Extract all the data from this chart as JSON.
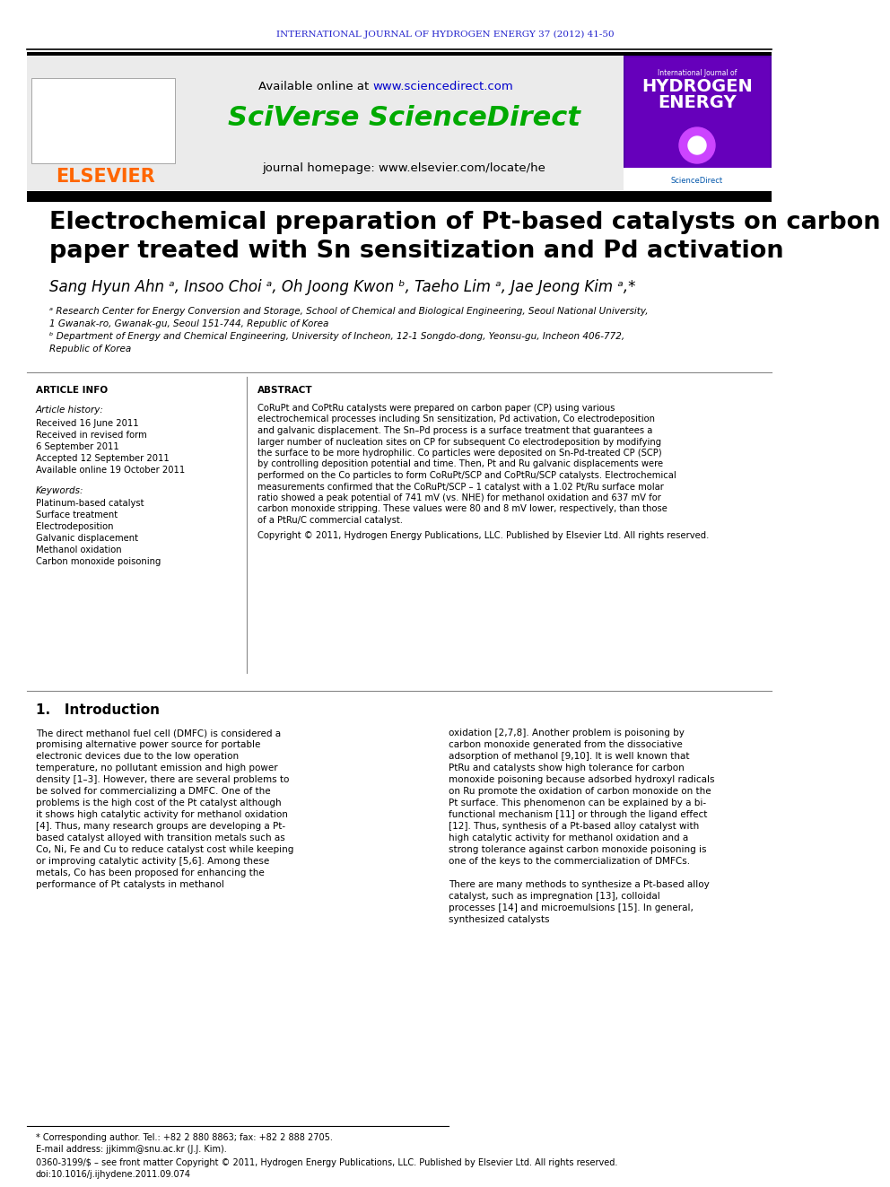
{
  "journal_header": "INTERNATIONAL JOURNAL OF HYDROGEN ENERGY 37 (2012) 41-50",
  "journal_header_color": "#2222cc",
  "available_online": "Available online at ",
  "sciencedirect_url": "www.sciencedirect.com",
  "sciencedirect_url_color": "#0000cc",
  "sciverse_text": "SciVerse ScienceDirect",
  "sciverse_color": "#00aa00",
  "journal_homepage": "journal homepage: www.elsevier.com/locate/he",
  "elsevier_color": "#ff6600",
  "title_line1": "Electrochemical preparation of Pt-based catalysts on carbon",
  "title_line2": "paper treated with Sn sensitization and Pd activation",
  "title_fontsize": 20,
  "authors": "Sang Hyun Ahn ᵃ, Insoo Choi ᵃ, Oh Joong Kwon ᵇ, Taeho Lim ᵃ, Jae Jeong Kim ᵃ,*",
  "affiliation_a": "ᵃ Research Center for Energy Conversion and Storage, School of Chemical and Biological Engineering, Seoul National University,",
  "affiliation_a2": "1 Gwanak-ro, Gwanak-gu, Seoul 151-744, Republic of Korea",
  "affiliation_b": "ᵇ Department of Energy and Chemical Engineering, University of Incheon, 12-1 Songdo-dong, Yeonsu-gu, Incheon 406-772,",
  "affiliation_b2": "Republic of Korea",
  "article_info_title": "ARTICLE INFO",
  "article_history_title": "Article history:",
  "received_1": "Received 16 June 2011",
  "received_revised": "Received in revised form",
  "received_revised_date": "6 September 2011",
  "accepted": "Accepted 12 September 2011",
  "available_online_date": "Available online 19 October 2011",
  "keywords_title": "Keywords:",
  "keywords": [
    "Platinum-based catalyst",
    "Surface treatment",
    "Electrodeposition",
    "Galvanic displacement",
    "Methanol oxidation",
    "Carbon monoxide poisoning"
  ],
  "abstract_title": "ABSTRACT",
  "abstract_text": "CoRuPt and CoPtRu catalysts were prepared on carbon paper (CP) using various electrochemical processes including Sn sensitization, Pd activation, Co electrodeposition and galvanic displacement. The Sn–Pd process is a surface treatment that guarantees a larger number of nucleation sites on CP for subsequent Co electrodeposition by modifying the surface to be more hydrophilic. Co particles were deposited on Sn-Pd-treated CP (SCP) by controlling deposition potential and time. Then, Pt and Ru galvanic displacements were performed on the Co particles to form CoRuPt/SCP and CoPtRu/SCP catalysts. Electrochemical measurements confirmed that the CoRuPt/SCP – 1 catalyst with a 1.02 Pt/Ru surface molar ratio showed a peak potential of 741 mV (vs. NHE) for methanol oxidation and 637 mV for carbon monoxide stripping. These values were 80 and 8 mV lower, respectively, than those of a PtRu/C commercial catalyst.",
  "copyright_text": "Copyright © 2011, Hydrogen Energy Publications, LLC. Published by Elsevier Ltd. All rights reserved.",
  "intro_title": "1.   Introduction",
  "intro_text1": "The direct methanol fuel cell (DMFC) is considered a promising alternative power source for portable electronic devices due to the low operation temperature, no pollutant emission and high power density [1–3]. However, there are several problems to be solved for commercializing a DMFC. One of the problems is the high cost of the Pt catalyst although it shows high catalytic activity for methanol oxidation [4]. Thus, many research groups are developing a Pt-based catalyst alloyed with transition metals such as Co, Ni, Fe and Cu to reduce catalyst cost while keeping or improving catalytic activity [5,6]. Among these metals, Co has been proposed for enhancing the performance of Pt catalysts in methanol",
  "intro_text2": "oxidation [2,7,8]. Another problem is poisoning by carbon monoxide generated from the dissociative adsorption of methanol [9,10]. It is well known that PtRu and catalysts show high tolerance for carbon monoxide poisoning because adsorbed hydroxyl radicals on Ru promote the oxidation of carbon monoxide on the Pt surface. This phenomenon can be explained by a bi-functional mechanism [11] or through the ligand effect [12]. Thus, synthesis of a Pt-based alloy catalyst with high catalytic activity for methanol oxidation and a strong tolerance against carbon monoxide poisoning is one of the keys to the commercialization of DMFCs.",
  "intro_text3": "There are many methods to synthesize a Pt-based alloy catalyst, such as impregnation [13], colloidal processes [14] and microemulsions [15]. In general, synthesized catalysts",
  "footnote_corresponding": "* Corresponding author. Tel.: +82 2 880 8863; fax: +82 2 888 2705.",
  "footnote_email": "E-mail address: jjkimm@snu.ac.kr (J.J. Kim).",
  "footnote_issn": "0360-3199/$ – see front matter Copyright © 2011, Hydrogen Energy Publications, LLC. Published by Elsevier Ltd. All rights reserved.",
  "footnote_doi": "doi:10.1016/j.ijhydene.2011.09.074",
  "bg_color": "#ffffff",
  "header_box_color": "#e8e8e8",
  "black_bar_color": "#1a1a1a"
}
